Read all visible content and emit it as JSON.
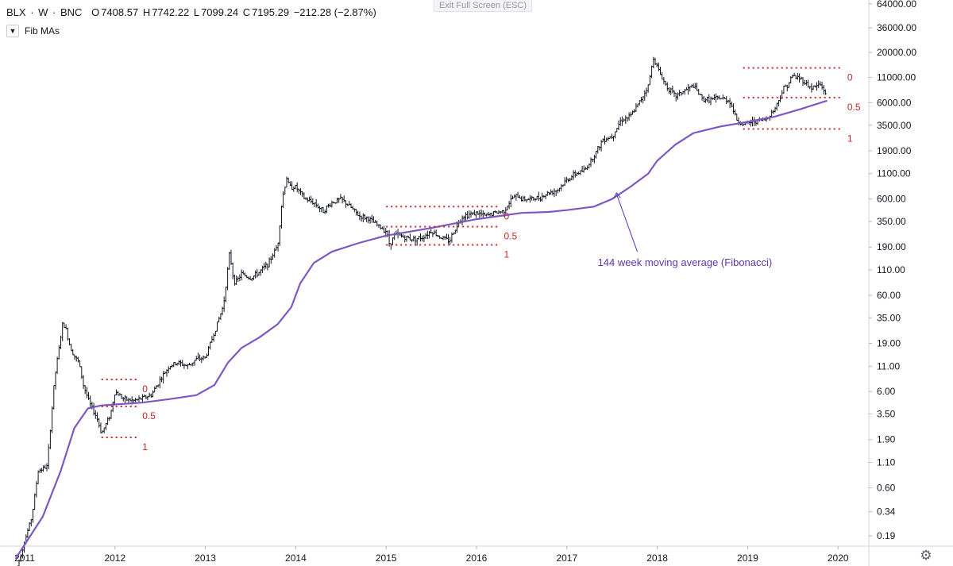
{
  "header": {
    "symbol": "BLX",
    "sep1": " · ",
    "interval": "W",
    "sep2": " · ",
    "exchange": "BNC",
    "o_label": "O",
    "o_value": "7408.57",
    "h_label": "H",
    "h_value": "7742.22",
    "l_label": "L",
    "l_value": "7099.24",
    "c_label": "C",
    "c_value": "7195.29",
    "change": "−212.28 (−2.87%)"
  },
  "exit_fullscreen_label": "Exit Full Screen (ESC)",
  "study": {
    "collapse_icon": "chevron-down-icon",
    "name": "Fib MAs"
  },
  "settings_icon": "gear-icon",
  "colors": {
    "candles": "#131722",
    "ma": "#7e57c2",
    "fib": "#c62828",
    "text": "#131722",
    "annotation": "#5e35b1"
  },
  "chart_data": {
    "type": "line",
    "y_scale": "log",
    "x_ticks": [
      "2011",
      "2012",
      "2013",
      "2014",
      "2015",
      "2016",
      "2017",
      "2018",
      "2019",
      "2020"
    ],
    "y_ticks": [
      "64000.00",
      "36000.00",
      "20000.00",
      "11000.00",
      "6000.00",
      "3500.00",
      "1900.00",
      "1100.00",
      "600.00",
      "350.00",
      "190.00",
      "110.00",
      "60.00",
      "35.00",
      "19.00",
      "11.00",
      "6.00",
      "3.50",
      "1.90",
      "1.10",
      "0.60",
      "0.34",
      "0.19"
    ],
    "price_series": {
      "x": [
        2010.9,
        2011.08,
        2011.15,
        2011.25,
        2011.33,
        2011.42,
        2011.45,
        2011.5,
        2011.55,
        2011.6,
        2011.65,
        2011.72,
        2011.8,
        2011.85,
        2011.88,
        2011.95,
        2012.0,
        2012.1,
        2012.2,
        2012.3,
        2012.4,
        2012.5,
        2012.6,
        2012.7,
        2012.8,
        2012.9,
        2013.0,
        2013.1,
        2013.2,
        2013.27,
        2013.3,
        2013.33,
        2013.4,
        2013.5,
        2013.6,
        2013.7,
        2013.8,
        2013.85,
        2013.9,
        2013.93,
        2014.0,
        2014.1,
        2014.2,
        2014.3,
        2014.4,
        2014.5,
        2014.6,
        2014.7,
        2014.8,
        2014.9,
        2015.0,
        2015.04,
        2015.1,
        2015.2,
        2015.3,
        2015.4,
        2015.5,
        2015.6,
        2015.7,
        2015.8,
        2015.85,
        2015.95,
        2016.0,
        2016.1,
        2016.2,
        2016.3,
        2016.4,
        2016.45,
        2016.5,
        2016.6,
        2016.7,
        2016.8,
        2016.9,
        2017.0,
        2017.1,
        2017.2,
        2017.3,
        2017.4,
        2017.5,
        2017.6,
        2017.7,
        2017.8,
        2017.9,
        2017.96,
        2018.0,
        2018.05,
        2018.1,
        2018.2,
        2018.3,
        2018.4,
        2018.5,
        2018.6,
        2018.7,
        2018.8,
        2018.88,
        2018.95,
        2019.0,
        2019.1,
        2019.2,
        2019.3,
        2019.4,
        2019.45,
        2019.5,
        2019.6,
        2019.7,
        2019.8,
        2019.88
      ],
      "y": [
        0.08,
        0.3,
        0.9,
        1.0,
        8,
        30,
        28,
        18,
        14,
        12,
        7,
        4.5,
        3.2,
        2.2,
        2.5,
        3.5,
        6,
        5,
        4.8,
        5.1,
        5.5,
        8,
        11,
        12,
        11,
        13,
        13.5,
        25,
        47,
        170,
        100,
        80,
        100,
        90,
        105,
        130,
        200,
        600,
        1000,
        800,
        800,
        600,
        550,
        450,
        550,
        600,
        500,
        400,
        380,
        320,
        280,
        200,
        260,
        240,
        230,
        240,
        280,
        240,
        220,
        350,
        400,
        420,
        430,
        400,
        430,
        450,
        620,
        650,
        600,
        600,
        620,
        700,
        750,
        950,
        1100,
        1200,
        1700,
        2500,
        2700,
        4000,
        4300,
        6000,
        9000,
        18000,
        14000,
        11000,
        9000,
        7000,
        8000,
        9000,
        6500,
        6500,
        6700,
        6300,
        4000,
        3500,
        3700,
        3900,
        4000,
        5200,
        8500,
        9500,
        11500,
        10500,
        8500,
        9300,
        7200
      ]
    },
    "ma_144w": {
      "name": "144 week moving average (Fibonacci)",
      "x": [
        2010.9,
        2011.2,
        2011.4,
        2011.55,
        2011.7,
        2011.85,
        2012.0,
        2012.3,
        2012.6,
        2012.9,
        2013.1,
        2013.25,
        2013.4,
        2013.6,
        2013.8,
        2013.95,
        2014.05,
        2014.2,
        2014.4,
        2014.7,
        2015.0,
        2015.5,
        2016.0,
        2016.5,
        2016.8,
        2017.0,
        2017.3,
        2017.5,
        2017.7,
        2017.9,
        2018.0,
        2018.2,
        2018.4,
        2018.7,
        2019.0,
        2019.3,
        2019.6,
        2019.88
      ],
      "y": [
        0.11,
        0.3,
        0.9,
        2.5,
        4.0,
        4.3,
        4.4,
        4.6,
        5.0,
        5.5,
        7.0,
        12,
        17,
        22,
        30,
        45,
        80,
        130,
        170,
        210,
        250,
        300,
        370,
        430,
        440,
        460,
        500,
        600,
        800,
        1100,
        1500,
        2200,
        2900,
        3400,
        3800,
        4300,
        5200,
        6300
      ]
    },
    "fib_retracements": [
      {
        "x0": 2011.85,
        "x1": 2012.25,
        "levels": [
          {
            "label": "0",
            "y": 8.0
          },
          {
            "label": "0.5",
            "y": 4.2
          },
          {
            "label": "1",
            "y": 2.0
          }
        ]
      },
      {
        "x0": 2015.0,
        "x1": 2016.25,
        "levels": [
          {
            "label": "0",
            "y": 500
          },
          {
            "label": "0.5",
            "y": 310
          },
          {
            "label": "1",
            "y": 200
          }
        ]
      },
      {
        "x0": 2018.95,
        "x1": 2020.05,
        "levels": [
          {
            "label": "0",
            "y": 13800
          },
          {
            "label": "0.5",
            "y": 6800
          },
          {
            "label": "1",
            "y": 3200
          }
        ]
      }
    ],
    "annotation": {
      "text": "144 week moving average (Fibonacci)",
      "at_x": 2017.78,
      "at_y": 130,
      "arrow_to_x": 2017.55,
      "arrow_to_y": 700
    }
  }
}
